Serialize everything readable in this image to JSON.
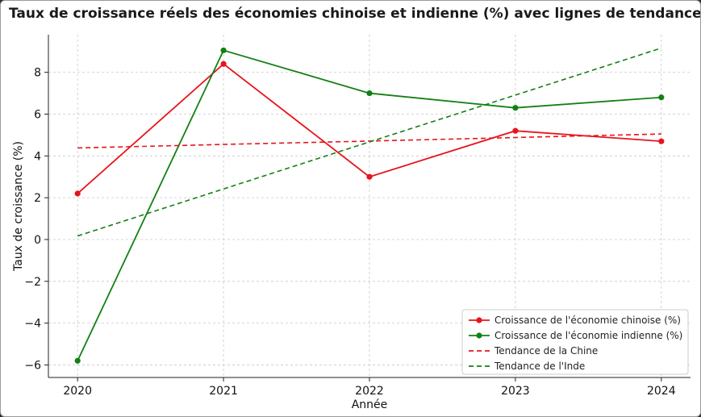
{
  "chart_data": {
    "type": "line",
    "title": "Taux de croissance réels des économies chinoise et indienne (%) avec lignes de tendance",
    "xlabel": "Année",
    "ylabel": "Taux de croissance (%)",
    "x": [
      2020,
      2021,
      2022,
      2023,
      2024
    ],
    "xticks": [
      "2020",
      "2021",
      "2022",
      "2023",
      "2024"
    ],
    "yticks": [
      -6,
      -4,
      -2,
      0,
      2,
      4,
      6,
      8
    ],
    "ytick_labels": [
      "−6",
      "−4",
      "−2",
      "0",
      "2",
      "4",
      "6",
      "8"
    ],
    "xlim": [
      2019.8,
      2024.2
    ],
    "ylim": [
      -6.6,
      9.8
    ],
    "grid": true,
    "legend_position": "bottom-right",
    "series": [
      {
        "name": "Croissance de l'économie chinoise (%)",
        "values": [
          2.2,
          8.4,
          3.0,
          5.2,
          4.7
        ],
        "color": "#e8141c",
        "style": "solid",
        "marker": "circle"
      },
      {
        "name": "Croissance de l'économie indienne (%)",
        "values": [
          -5.8,
          9.05,
          7.0,
          6.3,
          6.8
        ],
        "color": "#138013",
        "style": "solid",
        "marker": "circle"
      },
      {
        "name": "Tendance de la Chine",
        "values": [
          4.38,
          4.55,
          4.71,
          4.88,
          5.05
        ],
        "color": "#e8141c",
        "style": "dashed",
        "marker": "none"
      },
      {
        "name": "Tendance de l'Inde",
        "values": [
          0.17,
          2.42,
          4.67,
          6.91,
          9.16
        ],
        "color": "#138013",
        "style": "dashed",
        "marker": "none"
      }
    ]
  }
}
